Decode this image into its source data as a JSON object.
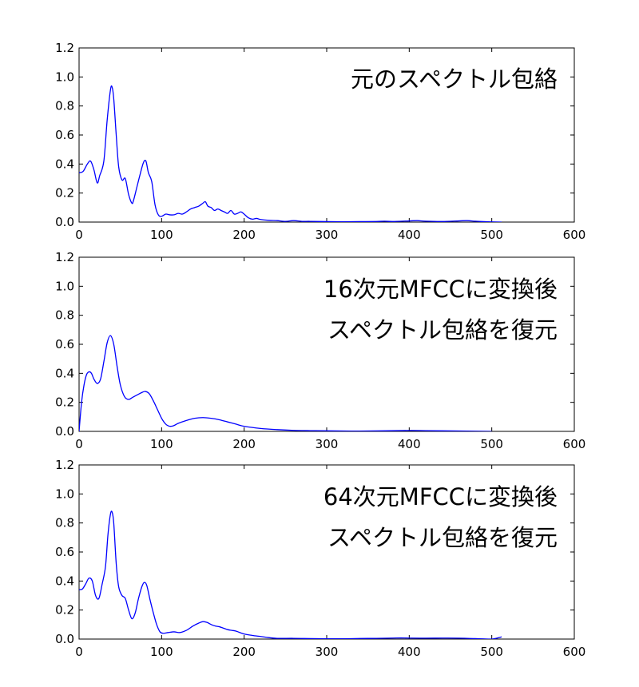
{
  "chart_data": [
    {
      "type": "line",
      "title": "",
      "xlabel": "",
      "ylabel": "",
      "xlim": [
        0,
        600
      ],
      "ylim": [
        0,
        1.2
      ],
      "x_ticks": [
        "0",
        "100",
        "200",
        "300",
        "400",
        "500",
        "600"
      ],
      "y_ticks": [
        "0.0",
        "0.2",
        "0.4",
        "0.6",
        "0.8",
        "1.0",
        "1.2"
      ],
      "annotation": [
        "元のスペクトル包絡"
      ],
      "legend": "none",
      "grid": false,
      "color": "#0000ff",
      "series": [
        {
          "x": [
            0,
            5,
            10,
            14,
            18,
            22,
            25,
            30,
            34,
            38,
            40,
            42,
            45,
            48,
            52,
            56,
            60,
            64,
            66,
            70,
            74,
            78,
            81,
            84,
            88,
            92,
            96,
            100,
            105,
            110,
            115,
            120,
            125,
            130,
            135,
            140,
            145,
            150,
            153,
            156,
            160,
            164,
            168,
            172,
            176,
            180,
            184,
            188,
            192,
            196,
            200,
            205,
            210,
            215,
            220,
            230,
            240,
            250,
            260,
            270,
            280,
            300,
            320,
            340,
            360,
            370,
            380,
            400,
            410,
            420,
            440,
            460,
            470,
            480,
            490,
            500,
            512
          ],
          "y": [
            0.34,
            0.35,
            0.4,
            0.42,
            0.36,
            0.27,
            0.32,
            0.42,
            0.7,
            0.91,
            0.93,
            0.85,
            0.6,
            0.38,
            0.29,
            0.3,
            0.19,
            0.13,
            0.15,
            0.24,
            0.33,
            0.41,
            0.42,
            0.34,
            0.28,
            0.12,
            0.05,
            0.04,
            0.055,
            0.05,
            0.05,
            0.06,
            0.055,
            0.07,
            0.09,
            0.1,
            0.11,
            0.13,
            0.14,
            0.11,
            0.1,
            0.08,
            0.09,
            0.08,
            0.07,
            0.06,
            0.08,
            0.055,
            0.06,
            0.07,
            0.055,
            0.03,
            0.02,
            0.025,
            0.018,
            0.012,
            0.01,
            0.005,
            0.01,
            0.005,
            0.005,
            0.003,
            0.002,
            0.003,
            0.004,
            0.006,
            0.004,
            0.008,
            0.01,
            0.006,
            0.004,
            0.008,
            0.01,
            0.006,
            0.003,
            0.001,
            0.0
          ]
        }
      ]
    },
    {
      "type": "line",
      "title": "",
      "xlabel": "",
      "ylabel": "",
      "xlim": [
        0,
        600
      ],
      "ylim": [
        0,
        1.2
      ],
      "x_ticks": [
        "0",
        "100",
        "200",
        "300",
        "400",
        "500",
        "600"
      ],
      "y_ticks": [
        "0.0",
        "0.2",
        "0.4",
        "0.6",
        "0.8",
        "1.0",
        "1.2"
      ],
      "annotation": [
        "16次元MFCCに変換後",
        "スペクトル包絡を復元"
      ],
      "legend": "none",
      "grid": false,
      "color": "#0000ff",
      "series": [
        {
          "x": [
            0,
            3,
            6,
            9,
            12,
            15,
            18,
            22,
            26,
            30,
            34,
            38,
            42,
            46,
            50,
            55,
            60,
            65,
            70,
            75,
            80,
            85,
            90,
            95,
            100,
            105,
            110,
            115,
            120,
            130,
            140,
            150,
            160,
            170,
            180,
            190,
            200,
            220,
            240,
            260,
            280,
            300,
            330,
            360,
            400,
            420,
            450,
            480,
            500
          ],
          "y": [
            0.0,
            0.2,
            0.32,
            0.39,
            0.41,
            0.4,
            0.36,
            0.33,
            0.36,
            0.48,
            0.61,
            0.66,
            0.6,
            0.45,
            0.32,
            0.24,
            0.22,
            0.235,
            0.25,
            0.265,
            0.275,
            0.26,
            0.21,
            0.15,
            0.09,
            0.05,
            0.035,
            0.04,
            0.055,
            0.075,
            0.09,
            0.095,
            0.09,
            0.08,
            0.065,
            0.05,
            0.035,
            0.02,
            0.012,
            0.007,
            0.005,
            0.004,
            0.002,
            0.003,
            0.006,
            0.005,
            0.003,
            0.001,
            0.0
          ]
        }
      ]
    },
    {
      "type": "line",
      "title": "",
      "xlabel": "",
      "ylabel": "",
      "xlim": [
        0,
        600
      ],
      "ylim": [
        0,
        1.2
      ],
      "x_ticks": [
        "0",
        "100",
        "200",
        "300",
        "400",
        "500",
        "600"
      ],
      "y_ticks": [
        "0.0",
        "0.2",
        "0.4",
        "0.6",
        "0.8",
        "1.0",
        "1.2"
      ],
      "annotation": [
        "64次元MFCCに変換後",
        "スペクトル包絡を復元"
      ],
      "legend": "none",
      "grid": false,
      "color": "#0000ff",
      "series": [
        {
          "x": [
            0,
            4,
            8,
            12,
            16,
            20,
            24,
            28,
            32,
            35,
            38,
            40,
            42,
            45,
            48,
            52,
            56,
            60,
            64,
            68,
            72,
            76,
            79,
            82,
            86,
            90,
            94,
            98,
            102,
            108,
            115,
            122,
            130,
            138,
            145,
            150,
            155,
            160,
            165,
            170,
            175,
            180,
            185,
            190,
            200,
            210,
            220,
            230,
            240,
            260,
            280,
            300,
            320,
            340,
            360,
            380,
            390,
            400,
            420,
            440,
            460,
            470,
            480,
            490,
            500,
            505,
            510,
            512
          ],
          "y": [
            0.34,
            0.345,
            0.38,
            0.42,
            0.4,
            0.3,
            0.28,
            0.38,
            0.5,
            0.72,
            0.86,
            0.875,
            0.8,
            0.52,
            0.36,
            0.3,
            0.28,
            0.2,
            0.14,
            0.18,
            0.28,
            0.36,
            0.39,
            0.37,
            0.27,
            0.18,
            0.1,
            0.05,
            0.04,
            0.045,
            0.05,
            0.045,
            0.06,
            0.09,
            0.11,
            0.12,
            0.115,
            0.1,
            0.09,
            0.085,
            0.075,
            0.065,
            0.06,
            0.055,
            0.035,
            0.025,
            0.018,
            0.01,
            0.005,
            0.005,
            0.003,
            0.002,
            0.002,
            0.004,
            0.005,
            0.007,
            0.008,
            0.007,
            0.006,
            0.007,
            0.006,
            0.005,
            0.003,
            0.001,
            0.0,
            0.005,
            0.012,
            0.015
          ]
        }
      ]
    }
  ]
}
